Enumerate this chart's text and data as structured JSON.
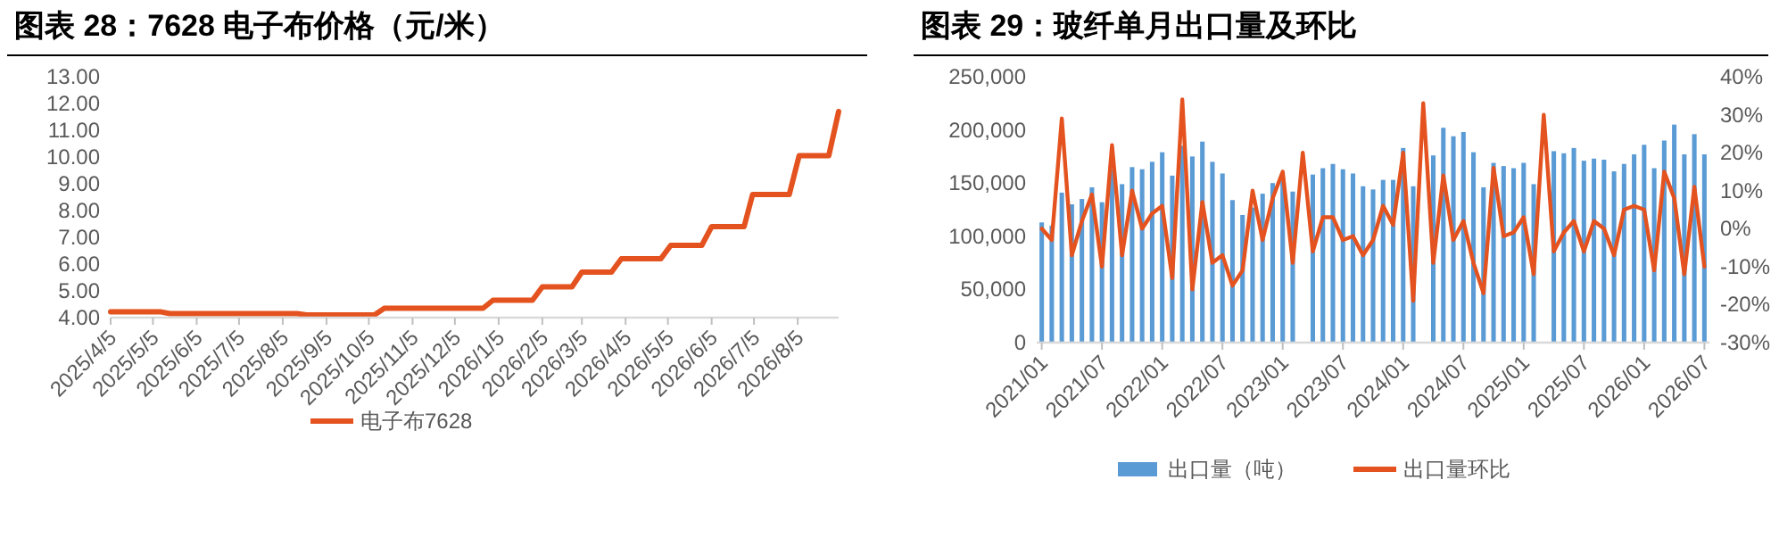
{
  "chart_data": [
    {
      "type": "line",
      "title": "图表 28：7628 电子布价格（元/米）",
      "x": [
        "2025-04-05",
        "2025-05-10",
        "2025-05-17",
        "2025-08-15",
        "2025-08-22",
        "2025-10-09",
        "2025-10-16",
        "2025-12-25",
        "2026-01-01",
        "2026-01-29",
        "2026-02-05",
        "2026-02-26",
        "2026-03-05",
        "2026-03-26",
        "2026-04-02",
        "2026-04-30",
        "2026-05-07",
        "2026-05-29",
        "2026-06-05",
        "2026-06-28",
        "2026-07-04",
        "2026-07-30",
        "2026-08-06",
        "2026-08-27",
        "2026-09-03"
      ],
      "series": [
        {
          "name": "电子布7628",
          "color": "#e4531f",
          "values": [
            4.22,
            4.22,
            4.15,
            4.15,
            4.1,
            4.1,
            4.35,
            4.35,
            4.65,
            4.65,
            5.15,
            5.15,
            5.7,
            5.7,
            6.2,
            6.2,
            6.7,
            6.7,
            7.4,
            7.4,
            8.6,
            8.6,
            10.05,
            10.05,
            11.7
          ]
        }
      ],
      "xlim": [
        "2025-04-05",
        "2026-09-03"
      ],
      "xticks": [
        {
          "value": "2025-04-05",
          "label": "2025/4/5"
        },
        {
          "value": "2025-05-05",
          "label": "2025/5/5"
        },
        {
          "value": "2025-06-05",
          "label": "2025/6/5"
        },
        {
          "value": "2025-07-05",
          "label": "2025/7/5"
        },
        {
          "value": "2025-08-05",
          "label": "2025/8/5"
        },
        {
          "value": "2025-09-05",
          "label": "2025/9/5"
        },
        {
          "value": "2025-10-05",
          "label": "2025/10/5"
        },
        {
          "value": "2025-11-05",
          "label": "2025/11/5"
        },
        {
          "value": "2025-12-05",
          "label": "2025/12/5"
        },
        {
          "value": "2026-01-05",
          "label": "2026/1/5"
        },
        {
          "value": "2026-02-05",
          "label": "2026/2/5"
        },
        {
          "value": "2026-03-05",
          "label": "2026/3/5"
        },
        {
          "value": "2026-04-05",
          "label": "2026/4/5"
        },
        {
          "value": "2026-05-05",
          "label": "2026/5/5"
        },
        {
          "value": "2026-06-05",
          "label": "2026/6/5"
        },
        {
          "value": "2026-07-05",
          "label": "2026/7/5"
        },
        {
          "value": "2026-08-05",
          "label": "2026/8/5"
        }
      ],
      "ylim": [
        4,
        13
      ],
      "yticks": [
        {
          "value": 4,
          "label": "4.00"
        },
        {
          "value": 5,
          "label": "5.00"
        },
        {
          "value": 6,
          "label": "6.00"
        },
        {
          "value": 7,
          "label": "7.00"
        },
        {
          "value": 8,
          "label": "8.00"
        },
        {
          "value": 9,
          "label": "9.00"
        },
        {
          "value": 10,
          "label": "10.00"
        },
        {
          "value": 11,
          "label": "11.00"
        },
        {
          "value": 12,
          "label": "12.00"
        },
        {
          "value": 13,
          "label": "13.00"
        }
      ],
      "legend": "bottom"
    },
    {
      "type": "bar",
      "title": "图表 29：玻纤单月出口量及环比",
      "categories": [
        "2021/01",
        null,
        null,
        null,
        null,
        null,
        "2021/07",
        null,
        null,
        null,
        null,
        null,
        "2022/01",
        null,
        null,
        null,
        null,
        null,
        "2022/07",
        null,
        null,
        null,
        null,
        null,
        "2023/01",
        null,
        null,
        null,
        null,
        null,
        "2023/07",
        null,
        null,
        null,
        null,
        null,
        "2024/01",
        null,
        null,
        null,
        null,
        null,
        "2024/07",
        null,
        null,
        null,
        null,
        null,
        "2025/01",
        null,
        null,
        null,
        null,
        null,
        "2025/07",
        null,
        null,
        null,
        null,
        null,
        "2026/01",
        null,
        null,
        null,
        null,
        null,
        "2026/07"
      ],
      "series": [
        {
          "name": "出口量（吨）",
          "color": "#5b9bd5",
          "values": [
            113000,
            110000,
            141000,
            130000,
            135000,
            146000,
            132000,
            163000,
            149000,
            165000,
            163000,
            170000,
            179000,
            157000,
            185000,
            175000,
            189000,
            170000,
            159000,
            134000,
            120000,
            127000,
            140000,
            150000,
            155000,
            142000,
            null,
            158000,
            164000,
            168000,
            163000,
            159000,
            147000,
            144000,
            153000,
            153000,
            183000,
            147000,
            null,
            176000,
            202000,
            194000,
            198000,
            179000,
            146000,
            169000,
            166000,
            164000,
            169000,
            149000,
            null,
            180000,
            178000,
            183000,
            171000,
            173000,
            172000,
            161000,
            168000,
            177000,
            186000,
            164000,
            190000,
            205000,
            177000,
            196000,
            177000
          ]
        },
        {
          "name": "出口量环比",
          "type": "line",
          "axis": "y2",
          "color": "#e4531f",
          "values": [
            0,
            -3,
            29,
            -7,
            2,
            9,
            -10,
            22,
            -7,
            10,
            0,
            4,
            6,
            -13,
            34,
            -16,
            7,
            -9,
            -7,
            -15,
            -11,
            10,
            -3,
            8,
            15,
            -9,
            20,
            -6,
            3,
            3,
            -3,
            -2,
            -7,
            -3,
            6,
            1,
            20,
            -19,
            33,
            -9,
            14,
            -3,
            2,
            -9,
            -17,
            16,
            -2,
            -1,
            3,
            -12,
            30,
            -6,
            -1,
            2,
            -6,
            2,
            0,
            -7,
            5,
            6,
            5,
            -11,
            15,
            8,
            -12,
            11,
            -10
          ]
        }
      ],
      "ylim": [
        0,
        250000
      ],
      "yticks": [
        {
          "value": 0,
          "label": "0"
        },
        {
          "value": 50000,
          "label": "50,000"
        },
        {
          "value": 100000,
          "label": "100,000"
        },
        {
          "value": 150000,
          "label": "150,000"
        },
        {
          "value": 200000,
          "label": "200,000"
        },
        {
          "value": 250000,
          "label": "250,000"
        }
      ],
      "y2lim": [
        -30,
        40
      ],
      "y2ticks": [
        {
          "value": -30,
          "label": "-30%"
        },
        {
          "value": -20,
          "label": "-20%"
        },
        {
          "value": -10,
          "label": "-10%"
        },
        {
          "value": 0,
          "label": "0%"
        },
        {
          "value": 10,
          "label": "10%"
        },
        {
          "value": 20,
          "label": "20%"
        },
        {
          "value": 30,
          "label": "30%"
        },
        {
          "value": 40,
          "label": "40%"
        }
      ],
      "legend": "bottom"
    }
  ]
}
